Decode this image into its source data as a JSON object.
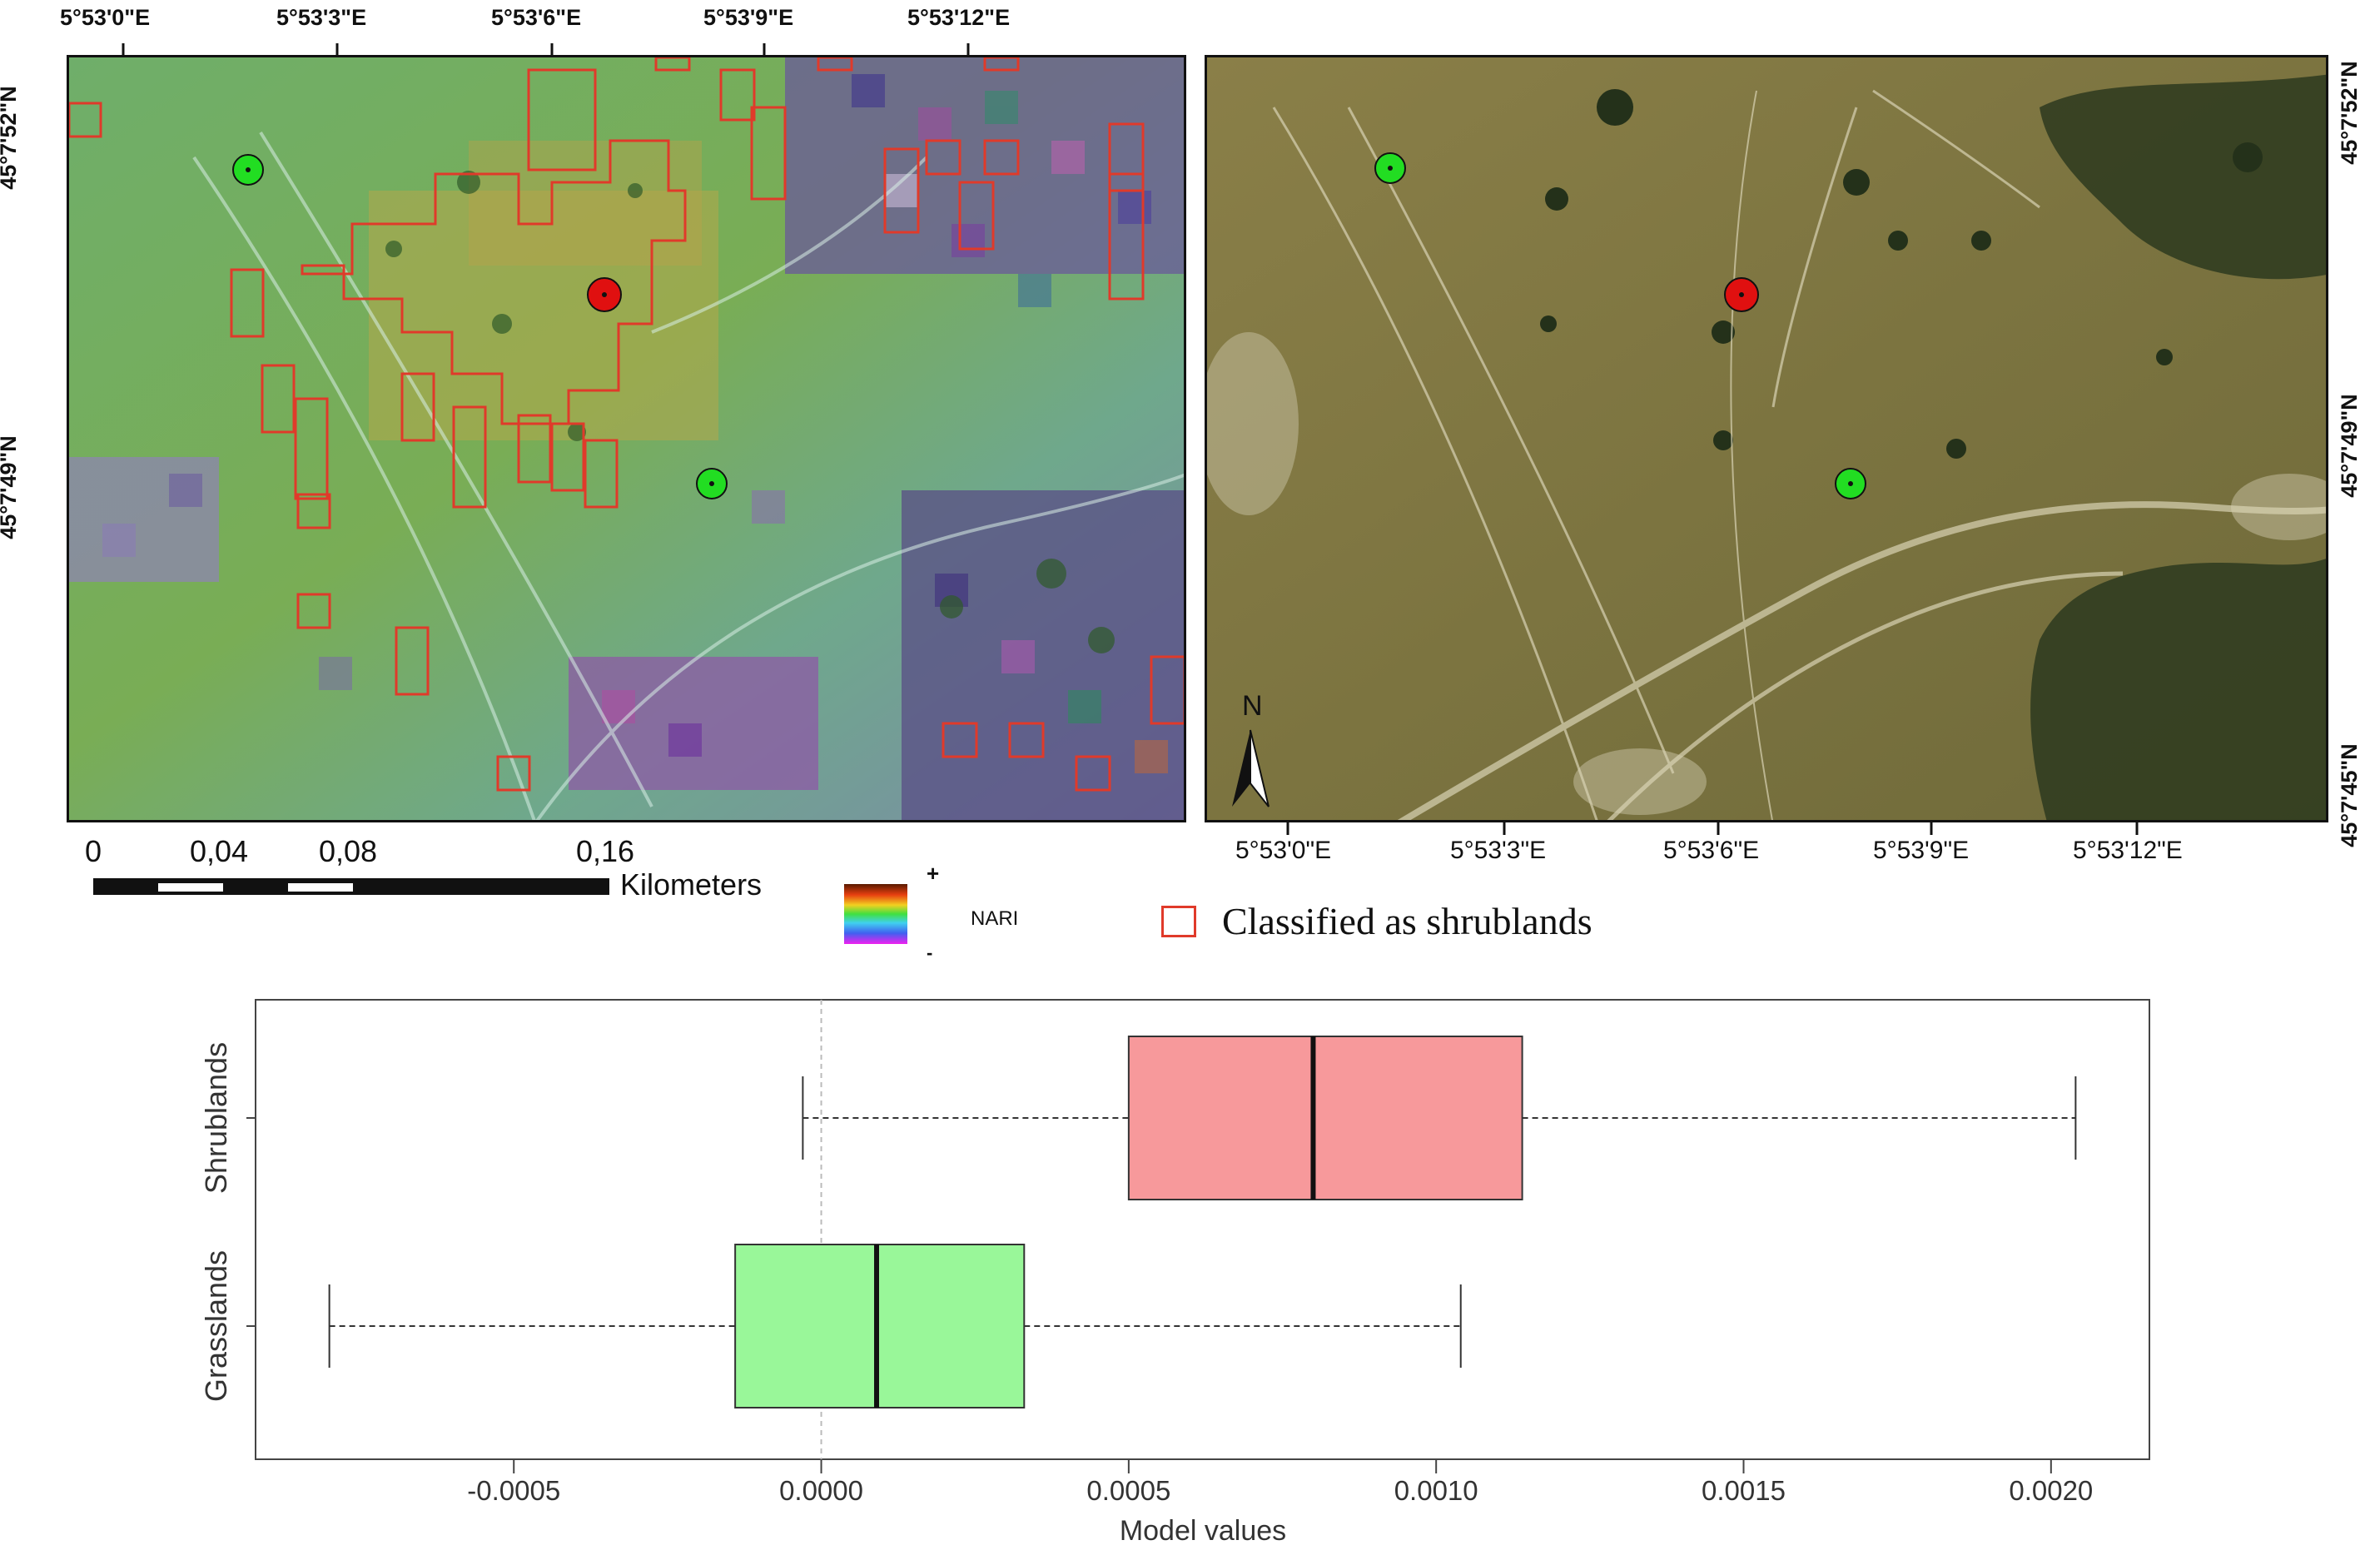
{
  "colors": {
    "control_point": "#22dd22",
    "shrubland_point": "#e01010",
    "shrubland_outline": "#e03a2a",
    "shrublands_box": "#f7999b",
    "grasslands_box": "#99f799"
  },
  "left_map": {
    "top_ticks": [
      "5°53'0\"E",
      "5°53'3\"E",
      "5°53'6\"E",
      "5°53'9\"E",
      "5°53'12\"E"
    ],
    "left_ticks": [
      "45°7'52\"N",
      "45°7'49\"N"
    ]
  },
  "right_map": {
    "bottom_ticks": [
      "5°53'0\"E",
      "5°53'3\"E",
      "5°53'6\"E",
      "5°53'9\"E",
      "5°53'12\"E"
    ],
    "right_ticks": [
      "45°7'52\"N",
      "45°7'49\"N",
      "45°7'45\"N"
    ],
    "north_label": "N",
    "north_icon": "north-arrow-icon"
  },
  "scale_bar": {
    "labels": [
      "0",
      "0,04",
      "0,08",
      "0,16"
    ],
    "unit": "Kilometers"
  },
  "legend": {
    "nari_plus": "+",
    "nari_minus": "-",
    "nari_label": "NARI",
    "shrub_label": "Classified as shrublands"
  },
  "chart_data": {
    "type": "boxplot",
    "orientation": "horizontal",
    "categories": [
      "Shrublands",
      "Grasslands"
    ],
    "series": [
      {
        "name": "Shrublands",
        "whisker_low": -3e-05,
        "q1": 0.0005,
        "median": 0.0008,
        "q3": 0.00114,
        "whisker_high": 0.00204,
        "color": "#f7999b"
      },
      {
        "name": "Grasslands",
        "whisker_low": -0.0008,
        "q1": -0.00014,
        "median": 9e-05,
        "q3": 0.00033,
        "whisker_high": 0.00104,
        "color": "#99f799"
      }
    ],
    "xlim": [
      -0.00092,
      0.00216
    ],
    "xticks": [
      -0.0005,
      0.0,
      0.0005,
      0.001,
      0.0015,
      0.002
    ],
    "xtick_labels": [
      "-0.0005",
      "0.0000",
      "0.0005",
      "0.0010",
      "0.0015",
      "0.0020"
    ],
    "xlabel": "Model values",
    "ylabel": "",
    "reference_line": 0.0,
    "grid": false
  }
}
